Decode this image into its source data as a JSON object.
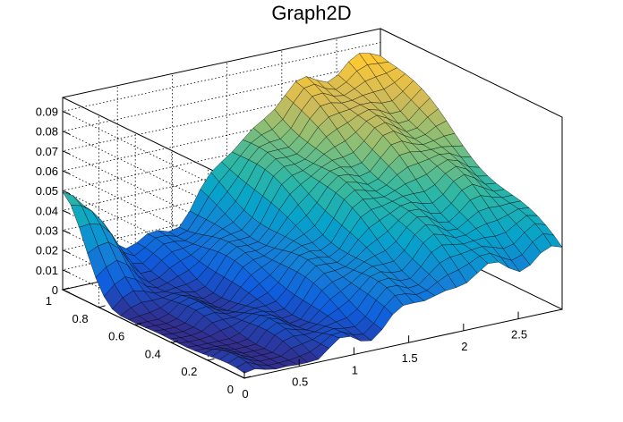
{
  "chart_data": {
    "type": "surface",
    "title": "Graph2D",
    "xlabel": "",
    "ylabel": "",
    "zlabel": "",
    "xlim": [
      0,
      2.9
    ],
    "ylim": [
      0,
      1
    ],
    "zlim": [
      0,
      0.097
    ],
    "grid": true,
    "x_ticks": [
      0,
      0.5,
      1,
      1.5,
      2,
      2.5
    ],
    "y_ticks": [
      0,
      0.2,
      0.4,
      0.6,
      0.8,
      1
    ],
    "z_ticks": [
      0,
      0.01,
      0.02,
      0.03,
      0.04,
      0.05,
      0.06,
      0.07,
      0.08,
      0.09
    ],
    "x_tick_labels": [
      "0",
      "0.5",
      "1",
      "1.5",
      "2",
      "2.5"
    ],
    "y_tick_labels": [
      "0",
      "0.2",
      "0.4",
      "0.6",
      "0.8",
      "1"
    ],
    "z_tick_labels": [
      "0",
      "0.01",
      "0.02",
      "0.03",
      "0.04",
      "0.05",
      "0.06",
      "0.07",
      "0.08",
      "0.09"
    ],
    "surface_description": "Approximate surface with ridge ~0.045 at y≈1,x≈0, valley ~0 near x≈0,y≈0.4, and plateau ~0.085 at x≈2–2.9, y≈0.6–1.",
    "colormap": [
      "#352a87",
      "#0f5cdd",
      "#1481d6",
      "#06a4ca",
      "#2eb7a4",
      "#87bf77",
      "#d1bb59",
      "#fec832",
      "#f9fb0e"
    ]
  }
}
